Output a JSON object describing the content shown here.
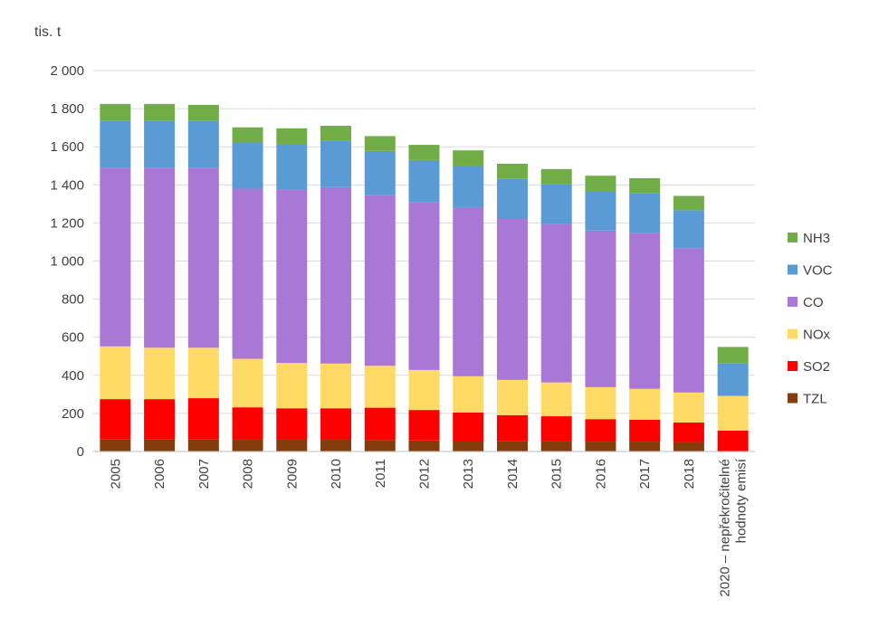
{
  "chart_data": {
    "type": "bar",
    "stacked": true,
    "ylabel": "tis. t",
    "ylim": [
      0,
      2000
    ],
    "yticks": [
      0,
      200,
      400,
      600,
      800,
      1000,
      1200,
      1400,
      1600,
      1800,
      2000
    ],
    "ytick_labels": [
      "0",
      "200",
      "400",
      "600",
      "800",
      "1 000",
      "1 200",
      "1 400",
      "1 600",
      "1 800",
      "2 000"
    ],
    "grid": true,
    "legend_position": "right",
    "categories": [
      "2005",
      "2006",
      "2007",
      "2008",
      "2009",
      "2010",
      "2011",
      "2012",
      "2013",
      "2014",
      "2015",
      "2016",
      "2017",
      "2018",
      "2020 – nepřekročitelné hodnoty emisí"
    ],
    "category_lines": [
      [
        "2005"
      ],
      [
        "2006"
      ],
      [
        "2007"
      ],
      [
        "2008"
      ],
      [
        "2009"
      ],
      [
        "2010"
      ],
      [
        "2011"
      ],
      [
        "2012"
      ],
      [
        "2013"
      ],
      [
        "2014"
      ],
      [
        "2015"
      ],
      [
        "2016"
      ],
      [
        "2017"
      ],
      [
        "2018"
      ],
      [
        "2020 – nepřekročitelné",
        "hodnoty emisí"
      ]
    ],
    "series": [
      {
        "name": "TZL",
        "color": "#843c0c",
        "values": [
          65,
          65,
          65,
          62,
          62,
          62,
          60,
          58,
          57,
          56,
          55,
          52,
          52,
          50,
          0
        ]
      },
      {
        "name": "SO2",
        "color": "#ff0000",
        "values": [
          210,
          210,
          215,
          170,
          165,
          165,
          170,
          160,
          148,
          135,
          130,
          118,
          115,
          102,
          110
        ]
      },
      {
        "name": "NOx",
        "color": "#ffd966",
        "values": [
          277,
          270,
          265,
          255,
          238,
          235,
          220,
          210,
          190,
          185,
          178,
          168,
          162,
          158,
          182
        ]
      },
      {
        "name": "CO",
        "color": "#a978d6",
        "values": [
          938,
          945,
          945,
          893,
          910,
          926,
          898,
          882,
          888,
          845,
          830,
          822,
          820,
          757,
          0
        ]
      },
      {
        "name": "VOC",
        "color": "#5b9bd5",
        "values": [
          245,
          245,
          245,
          240,
          240,
          242,
          230,
          220,
          218,
          210,
          210,
          208,
          208,
          200,
          170
        ]
      },
      {
        "name": "NH3",
        "color": "#70ad47",
        "values": [
          90,
          90,
          85,
          82,
          82,
          80,
          78,
          80,
          80,
          80,
          80,
          80,
          78,
          75,
          87
        ]
      }
    ],
    "legend_order": [
      "NH3",
      "VOC",
      "CO",
      "NOx",
      "SO2",
      "TZL"
    ]
  }
}
